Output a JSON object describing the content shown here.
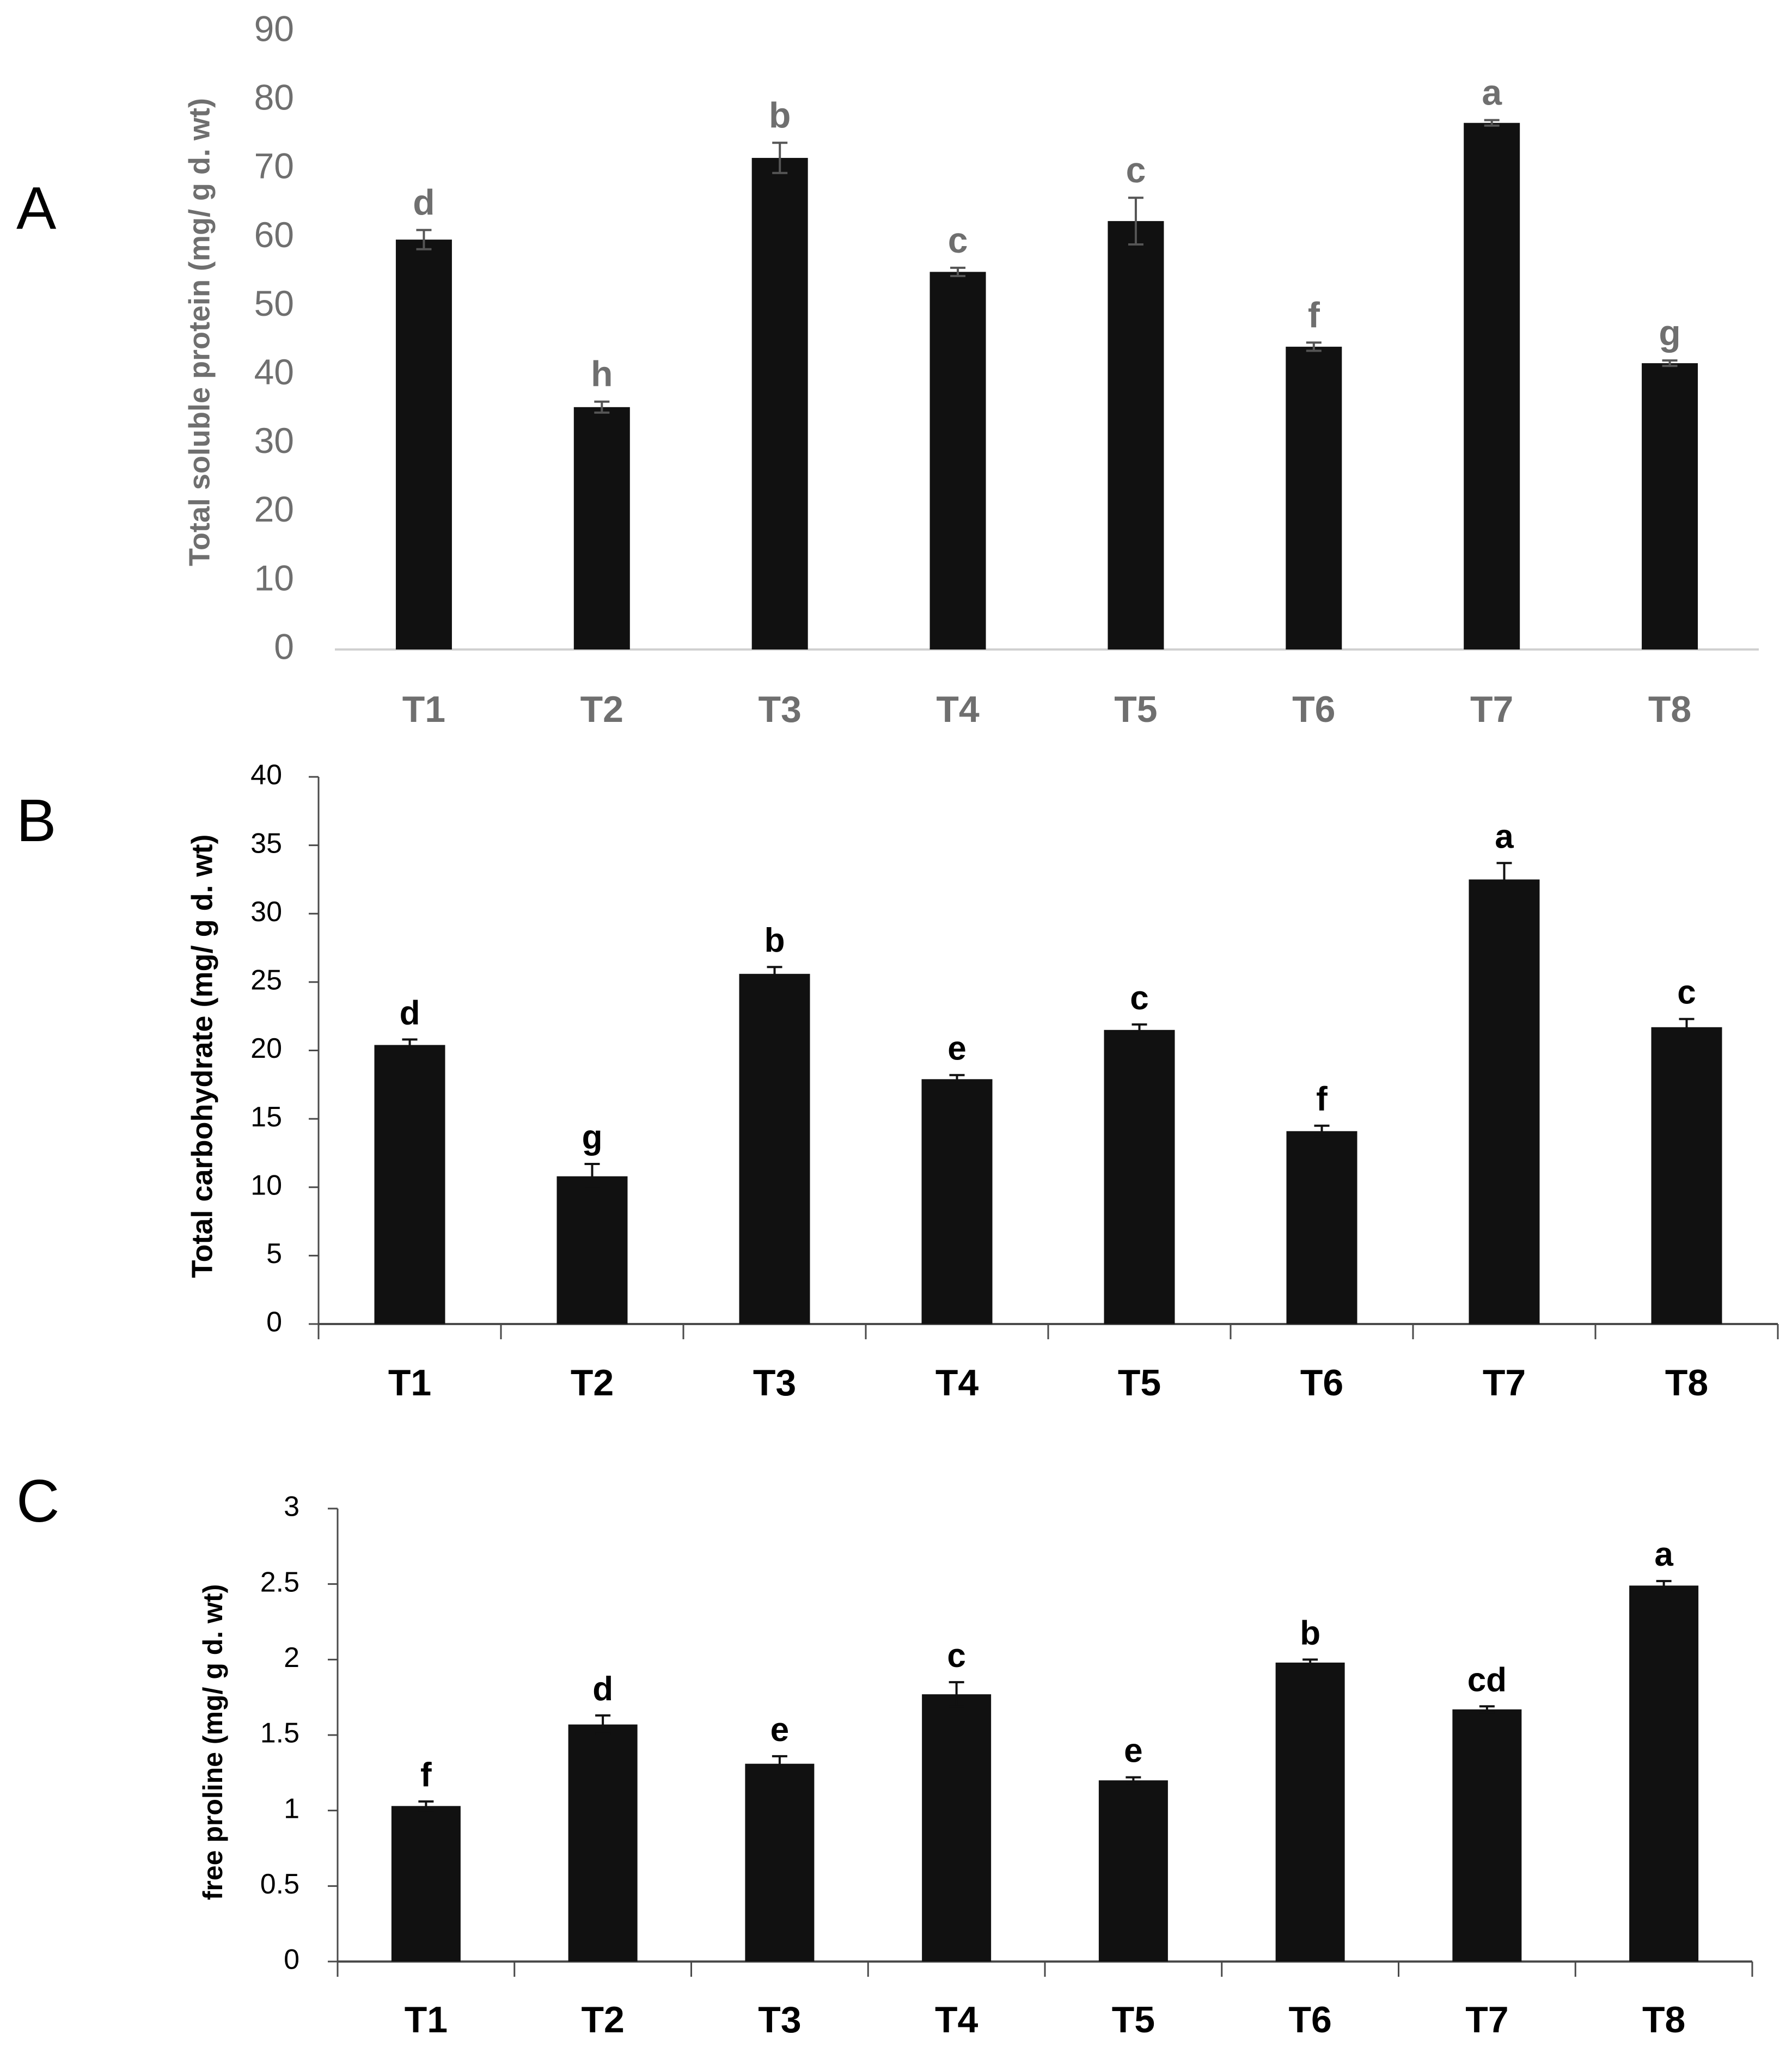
{
  "colors": {
    "bar": "#111111",
    "axis_gray": "#d0d0d0",
    "text_gray": "#6f6f6f",
    "text_black": "#000000",
    "errorbar_gray": "#555555"
  },
  "chart_data": [
    {
      "panel": "A",
      "type": "bar",
      "title": "",
      "xlabel": "",
      "ylabel": "Total soluble protein (mg/ g d. wt)",
      "ylim": [
        0,
        90
      ],
      "yticks": [
        0,
        10,
        20,
        30,
        40,
        50,
        60,
        70,
        80,
        90
      ],
      "categories": [
        "T1",
        "T2",
        "T3",
        "T4",
        "T5",
        "T6",
        "T7",
        "T8"
      ],
      "values": [
        59.7,
        35.3,
        71.6,
        55.0,
        62.4,
        44.1,
        76.7,
        41.7
      ],
      "errors": [
        1.4,
        0.8,
        2.2,
        0.6,
        3.4,
        0.6,
        0.4,
        0.4
      ],
      "letters": [
        "d",
        "h",
        "b",
        "c",
        "c",
        "f",
        "a",
        "g"
      ],
      "style": "gray"
    },
    {
      "panel": "B",
      "type": "bar",
      "title": "",
      "xlabel": "",
      "ylabel": "Total carbohydrate (mg/ g d. wt)",
      "ylim": [
        0,
        40
      ],
      "yticks": [
        0,
        5,
        10,
        15,
        20,
        25,
        30,
        35,
        40
      ],
      "categories": [
        "T1",
        "T2",
        "T3",
        "T4",
        "T5",
        "T6",
        "T7",
        "T8"
      ],
      "values": [
        20.4,
        10.8,
        25.6,
        17.9,
        21.5,
        14.1,
        32.5,
        21.7
      ],
      "errors": [
        0.4,
        0.9,
        0.5,
        0.3,
        0.4,
        0.4,
        1.2,
        0.6
      ],
      "letters": [
        "d",
        "g",
        "b",
        "e",
        "c",
        "f",
        "a",
        "c"
      ],
      "style": "black"
    },
    {
      "panel": "C",
      "type": "bar",
      "title": "",
      "xlabel": "",
      "ylabel": "free proline (mg/ g d. wt)",
      "ylim": [
        0,
        3
      ],
      "yticks": [
        0,
        0.5,
        1,
        1.5,
        2,
        2.5,
        3
      ],
      "categories": [
        "T1",
        "T2",
        "T3",
        "T4",
        "T5",
        "T6",
        "T7",
        "T8"
      ],
      "values": [
        1.03,
        1.57,
        1.31,
        1.77,
        1.2,
        1.98,
        1.67,
        2.49
      ],
      "errors": [
        0.03,
        0.06,
        0.05,
        0.08,
        0.02,
        0.02,
        0.02,
        0.03
      ],
      "letters": [
        "f",
        "d",
        "e",
        "c",
        "e",
        "b",
        "cd",
        "a"
      ],
      "style": "black"
    }
  ]
}
